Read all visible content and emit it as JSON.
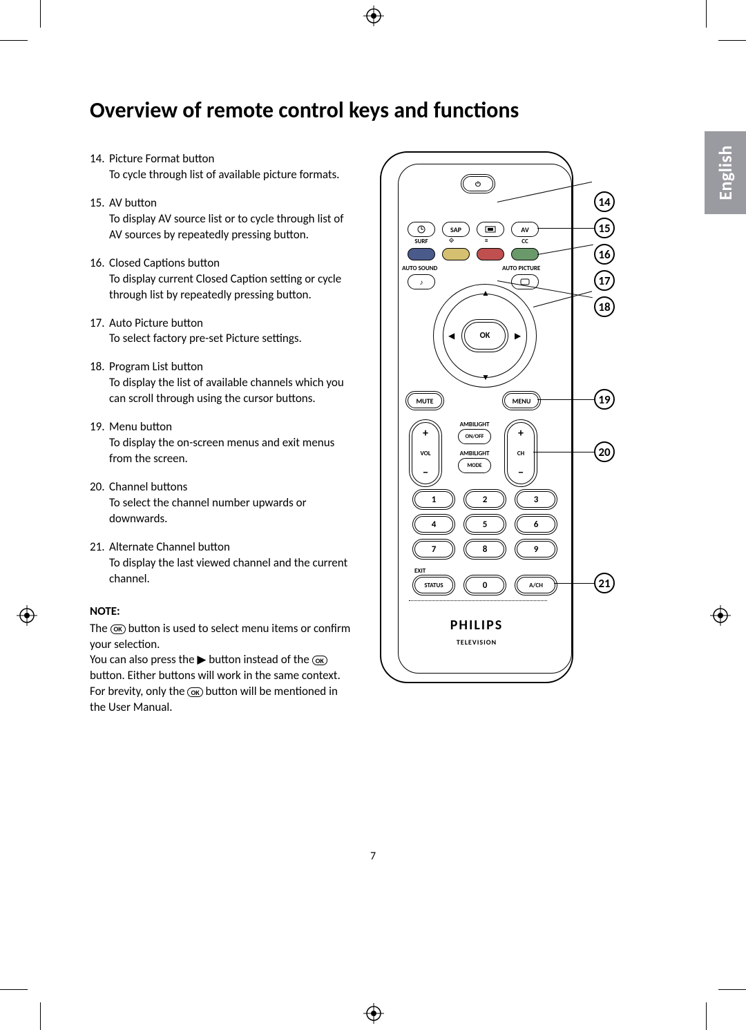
{
  "page_number": "7",
  "language_tab": "English",
  "title": "Overview of remote control keys and functions",
  "items": [
    {
      "num": "14.",
      "title": "Picture Format button",
      "desc": "To cycle through list of available picture formats."
    },
    {
      "num": "15.",
      "title": "AV button",
      "desc": "To display AV source list or to cycle through list of AV sources by repeatedly pressing button."
    },
    {
      "num": "16.",
      "title": "Closed Captions button",
      "desc": "To display current Closed Caption setting or cycle through list by repeatedly pressing button."
    },
    {
      "num": "17.",
      "title": "Auto Picture button",
      "desc": "To select factory pre-set Picture settings."
    },
    {
      "num": "18.",
      "title": "Program List button",
      "desc": "To display the list of available channels which you can scroll through using the cursor buttons."
    },
    {
      "num": "19.",
      "title": "Menu button",
      "desc": "To display the on-screen menus and exit menus from the screen."
    },
    {
      "num": "20.",
      "title": "Channel buttons",
      "desc": "To select the channel number upwards or downwards."
    },
    {
      "num": "21.",
      "title": "Alternate Channel button",
      "desc": "To display the last viewed channel and the current channel."
    }
  ],
  "note": {
    "heading": "NOTE:",
    "line1_a": "The ",
    "ok": "OK",
    "line1_b": " button is used to select menu items or confirm your selection.",
    "line2_a": "You can also press the ",
    "right": "▶",
    "line2_b": " button instead of the ",
    "line2_c": " button. Either buttons will work in the same context. For brevity, only the ",
    "line2_d": " button will be mentioned in the User Manual."
  },
  "remote": {
    "row1": {
      "sap": "SAP",
      "av": "AV"
    },
    "row1_sub": {
      "surf": "SURF",
      "cc": "CC"
    },
    "auto_sound": "AUTO SOUND",
    "auto_picture": "AUTO PICTURE",
    "ok": "OK",
    "mute": "MUTE",
    "menu": "MENU",
    "ambi_onoff_top": "AMBILIGHT",
    "ambi_onoff": "ON/OFF",
    "ambi_mode_top": "AMBILIGHT",
    "ambi_mode": "MODE",
    "vol": "VOL",
    "ch": "CH",
    "exit": "EXIT",
    "status": "STATUS",
    "ach": "A/CH",
    "numbers": [
      "1",
      "2",
      "3",
      "4",
      "5",
      "6",
      "7",
      "8",
      "9",
      "0"
    ],
    "brand": "PHILIPS",
    "subbrand": "TELEVISION"
  },
  "callouts": [
    "14",
    "15",
    "16",
    "17",
    "18",
    "19",
    "20",
    "21"
  ],
  "colors": {
    "tab_bg": "#9a9ba0",
    "tab_fg": "#ffffff",
    "ink": "#000000",
    "paper": "#ffffff",
    "row2_blue": "#4a5a8a",
    "row2_yellow": "#d4c070",
    "row2_red": "#c05050",
    "row2_green": "#6a9a6a"
  }
}
